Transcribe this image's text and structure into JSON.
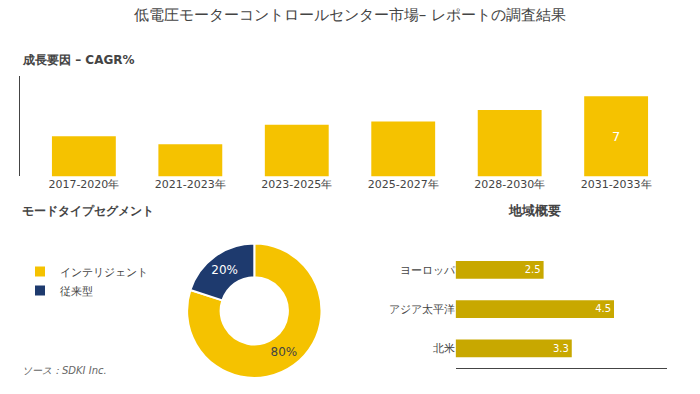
{
  "title": "低電圧モーターコントロールセンター市場– レポートの調査結果",
  "chart_data": [
    {
      "type": "bar",
      "title": "成長要因 – CAGR%",
      "categories": [
        "2017-2020年",
        "2021-2023年",
        "2023-2025年",
        "2025-2027年",
        "2028-2030年",
        "2031-2033年"
      ],
      "values": [
        3.5,
        2.8,
        4.5,
        4.8,
        5.8,
        7.0
      ],
      "value_labels": [
        null,
        null,
        null,
        null,
        null,
        "7"
      ],
      "data_labels": true,
      "color": "#f5c200",
      "ylim": [
        0,
        8.8
      ],
      "tick_labels": "x",
      "grid": false
    },
    {
      "type": "donut",
      "title": "モードタイプセグメント",
      "categories": [
        "インテリジェント",
        "従来型"
      ],
      "values": [
        80,
        20
      ],
      "value_labels": [
        "80%",
        "20%"
      ],
      "data_labels": true,
      "colors": [
        "#f5c200",
        "#1e3a6e"
      ],
      "legend": "left",
      "annotations": [
        "ソース：SDKI Inc."
      ]
    },
    {
      "type": "bar",
      "title": "地域概要",
      "orientation": "horizontal",
      "categories": [
        "ヨーロッパ",
        "アジア太平洋",
        "北米"
      ],
      "values": [
        2.5,
        4.5,
        3.3
      ],
      "data_labels": true,
      "color": "#c8a800",
      "xlim": [
        0,
        6
      ],
      "tick_labels": "y",
      "grid": false
    }
  ]
}
